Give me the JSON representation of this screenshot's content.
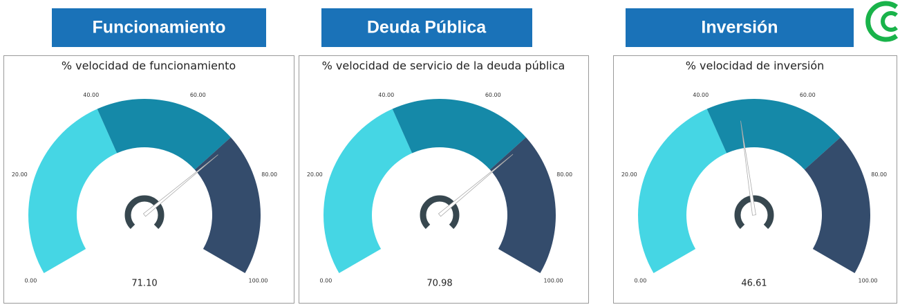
{
  "headers": [
    "Funcionamiento",
    "Deuda Pública",
    "Inversión"
  ],
  "chart_data": [
    {
      "type": "gauge",
      "title": "% velocidad de funcionamiento",
      "value": 71.1,
      "value_label": "71.10",
      "ylim": [
        0,
        100
      ],
      "yticks": [
        {
          "value": 0,
          "label": "0.00"
        },
        {
          "value": 20,
          "label": "20.00"
        },
        {
          "value": 40,
          "label": "40.00"
        },
        {
          "value": 60,
          "label": "60.00"
        },
        {
          "value": 80,
          "label": "80.00"
        },
        {
          "value": 100,
          "label": "100.00"
        }
      ],
      "bands": [
        {
          "from": 0,
          "to": 40,
          "color": "#45d6e4"
        },
        {
          "from": 40,
          "to": 70,
          "color": "#1589a8"
        },
        {
          "from": 70,
          "to": 100,
          "color": "#344c6c"
        }
      ]
    },
    {
      "type": "gauge",
      "title": "% velocidad de servicio de la deuda pública",
      "value": 70.98,
      "value_label": "70.98",
      "ylim": [
        0,
        100
      ],
      "yticks": [
        {
          "value": 0,
          "label": "0.00"
        },
        {
          "value": 20,
          "label": "20.00"
        },
        {
          "value": 40,
          "label": "40.00"
        },
        {
          "value": 60,
          "label": "60.00"
        },
        {
          "value": 80,
          "label": "80.00"
        },
        {
          "value": 100,
          "label": "100.00"
        }
      ],
      "bands": [
        {
          "from": 0,
          "to": 40,
          "color": "#45d6e4"
        },
        {
          "from": 40,
          "to": 70,
          "color": "#1589a8"
        },
        {
          "from": 70,
          "to": 100,
          "color": "#344c6c"
        }
      ]
    },
    {
      "type": "gauge",
      "title": "% velocidad de inversión",
      "value": 46.61,
      "value_label": "46.61",
      "ylim": [
        0,
        100
      ],
      "yticks": [
        {
          "value": 0,
          "label": "0.00"
        },
        {
          "value": 20,
          "label": "20.00"
        },
        {
          "value": 40,
          "label": "40.00"
        },
        {
          "value": 60,
          "label": "60.00"
        },
        {
          "value": 80,
          "label": "80.00"
        },
        {
          "value": 100,
          "label": "100.00"
        }
      ],
      "bands": [
        {
          "from": 0,
          "to": 40,
          "color": "#45d6e4"
        },
        {
          "from": 40,
          "to": 70,
          "color": "#1589a8"
        },
        {
          "from": 70,
          "to": 100,
          "color": "#344c6c"
        }
      ]
    }
  ]
}
